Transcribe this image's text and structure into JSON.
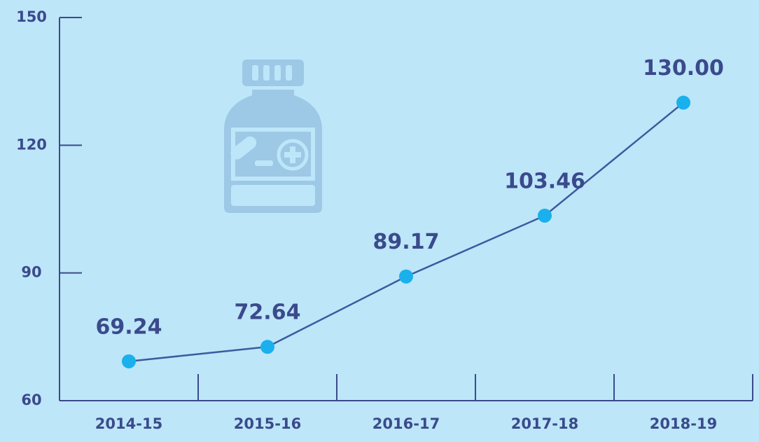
{
  "chart_data": {
    "type": "line",
    "categories": [
      "2014-15",
      "2015-16",
      "2016-17",
      "2017-18",
      "2018-19"
    ],
    "values": [
      69.24,
      72.64,
      89.17,
      103.46,
      130
    ],
    "value_labels": [
      "69.24",
      "72.64",
      "89.17",
      "103.46",
      "130.00"
    ],
    "color": "#3d5a9e",
    "marker_color": "#1ab0ec",
    "ylim": [
      60,
      150
    ],
    "yticks": [
      60,
      90,
      120,
      150
    ]
  }
}
